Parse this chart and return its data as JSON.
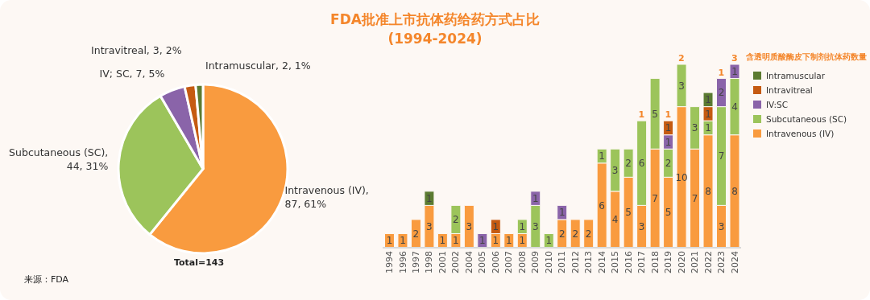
{
  "chart_data": [
    {
      "type": "pie",
      "categories": [
        "Intravenous (IV)",
        "Subcutaneous (SC)",
        "IV; SC",
        "Intravitreal",
        "Intramuscular"
      ],
      "values": [
        87,
        44,
        7,
        3,
        2
      ],
      "value_labels": [
        ", 87, 61%",
        ", 44, 31%",
        ", 7, 5%",
        ", 3, 2%",
        ", 2, 1%"
      ],
      "colors": [
        "#f99b3f",
        "#9cc45b",
        "#8a64a9",
        "#c55a11",
        "#5b7b31"
      ],
      "annotations": [
        "Total=143",
        "来源：FDA"
      ]
    },
    {
      "type": "bar",
      "title": "FDA批准上市抗体药给药方式占比\n(1994-2024)",
      "stacked": true,
      "data_labels": true,
      "legend": "right",
      "categories": [
        "1994",
        "1996",
        "1997",
        "1998",
        "2001",
        "2002",
        "2004",
        "2005",
        "2006",
        "2007",
        "2008",
        "2009",
        "2010",
        "2011",
        "2012",
        "2013",
        "2014",
        "2015",
        "2016",
        "2017",
        "2018",
        "2019",
        "2020",
        "2021",
        "2022",
        "2023",
        "2024"
      ],
      "series": [
        {
          "name": "Intravenous (IV)",
          "color": "#f99b3f",
          "values": [
            1,
            1,
            2,
            3,
            1,
            1,
            3,
            null,
            1,
            1,
            1,
            null,
            null,
            2,
            2,
            2,
            6,
            4,
            5,
            3,
            7,
            5,
            10,
            7,
            8,
            3,
            8
          ]
        },
        {
          "name": "Subcutaneous (SC)",
          "color": "#9cc45b",
          "values": [
            null,
            null,
            null,
            null,
            null,
            2,
            null,
            null,
            null,
            null,
            1,
            3,
            1,
            null,
            null,
            null,
            1,
            3,
            2,
            6,
            5,
            2,
            3,
            3,
            1,
            7,
            4
          ]
        },
        {
          "name": "IV:SC",
          "color": "#8a64a9",
          "values": [
            null,
            null,
            null,
            null,
            null,
            null,
            null,
            1,
            null,
            null,
            null,
            1,
            null,
            1,
            null,
            null,
            null,
            null,
            null,
            null,
            null,
            1,
            null,
            null,
            null,
            2,
            1
          ]
        },
        {
          "name": "Intravitreal",
          "color": "#c55a11",
          "values": [
            null,
            null,
            null,
            null,
            null,
            null,
            null,
            null,
            1,
            null,
            null,
            null,
            null,
            null,
            null,
            null,
            null,
            null,
            null,
            null,
            null,
            1,
            null,
            null,
            1,
            null,
            null
          ]
        },
        {
          "name": "Intramuscular",
          "color": "#5b7b31",
          "values": [
            null,
            null,
            null,
            1,
            null,
            null,
            null,
            null,
            null,
            null,
            null,
            null,
            null,
            null,
            null,
            null,
            null,
            null,
            null,
            null,
            null,
            null,
            null,
            null,
            1,
            null,
            null
          ]
        }
      ],
      "annotations": [
        {
          "text": "1",
          "x": "2017",
          "y": 9
        },
        {
          "text": "1",
          "x": "2019",
          "y": 9
        },
        {
          "text": "2",
          "x": "2020",
          "y": 13
        },
        {
          "text": "1",
          "x": "2023",
          "y": 12
        },
        {
          "text": "3",
          "x": "2024",
          "y": 13
        },
        "含透明质酸酶皮下制剂抗体药数量"
      ]
    }
  ]
}
